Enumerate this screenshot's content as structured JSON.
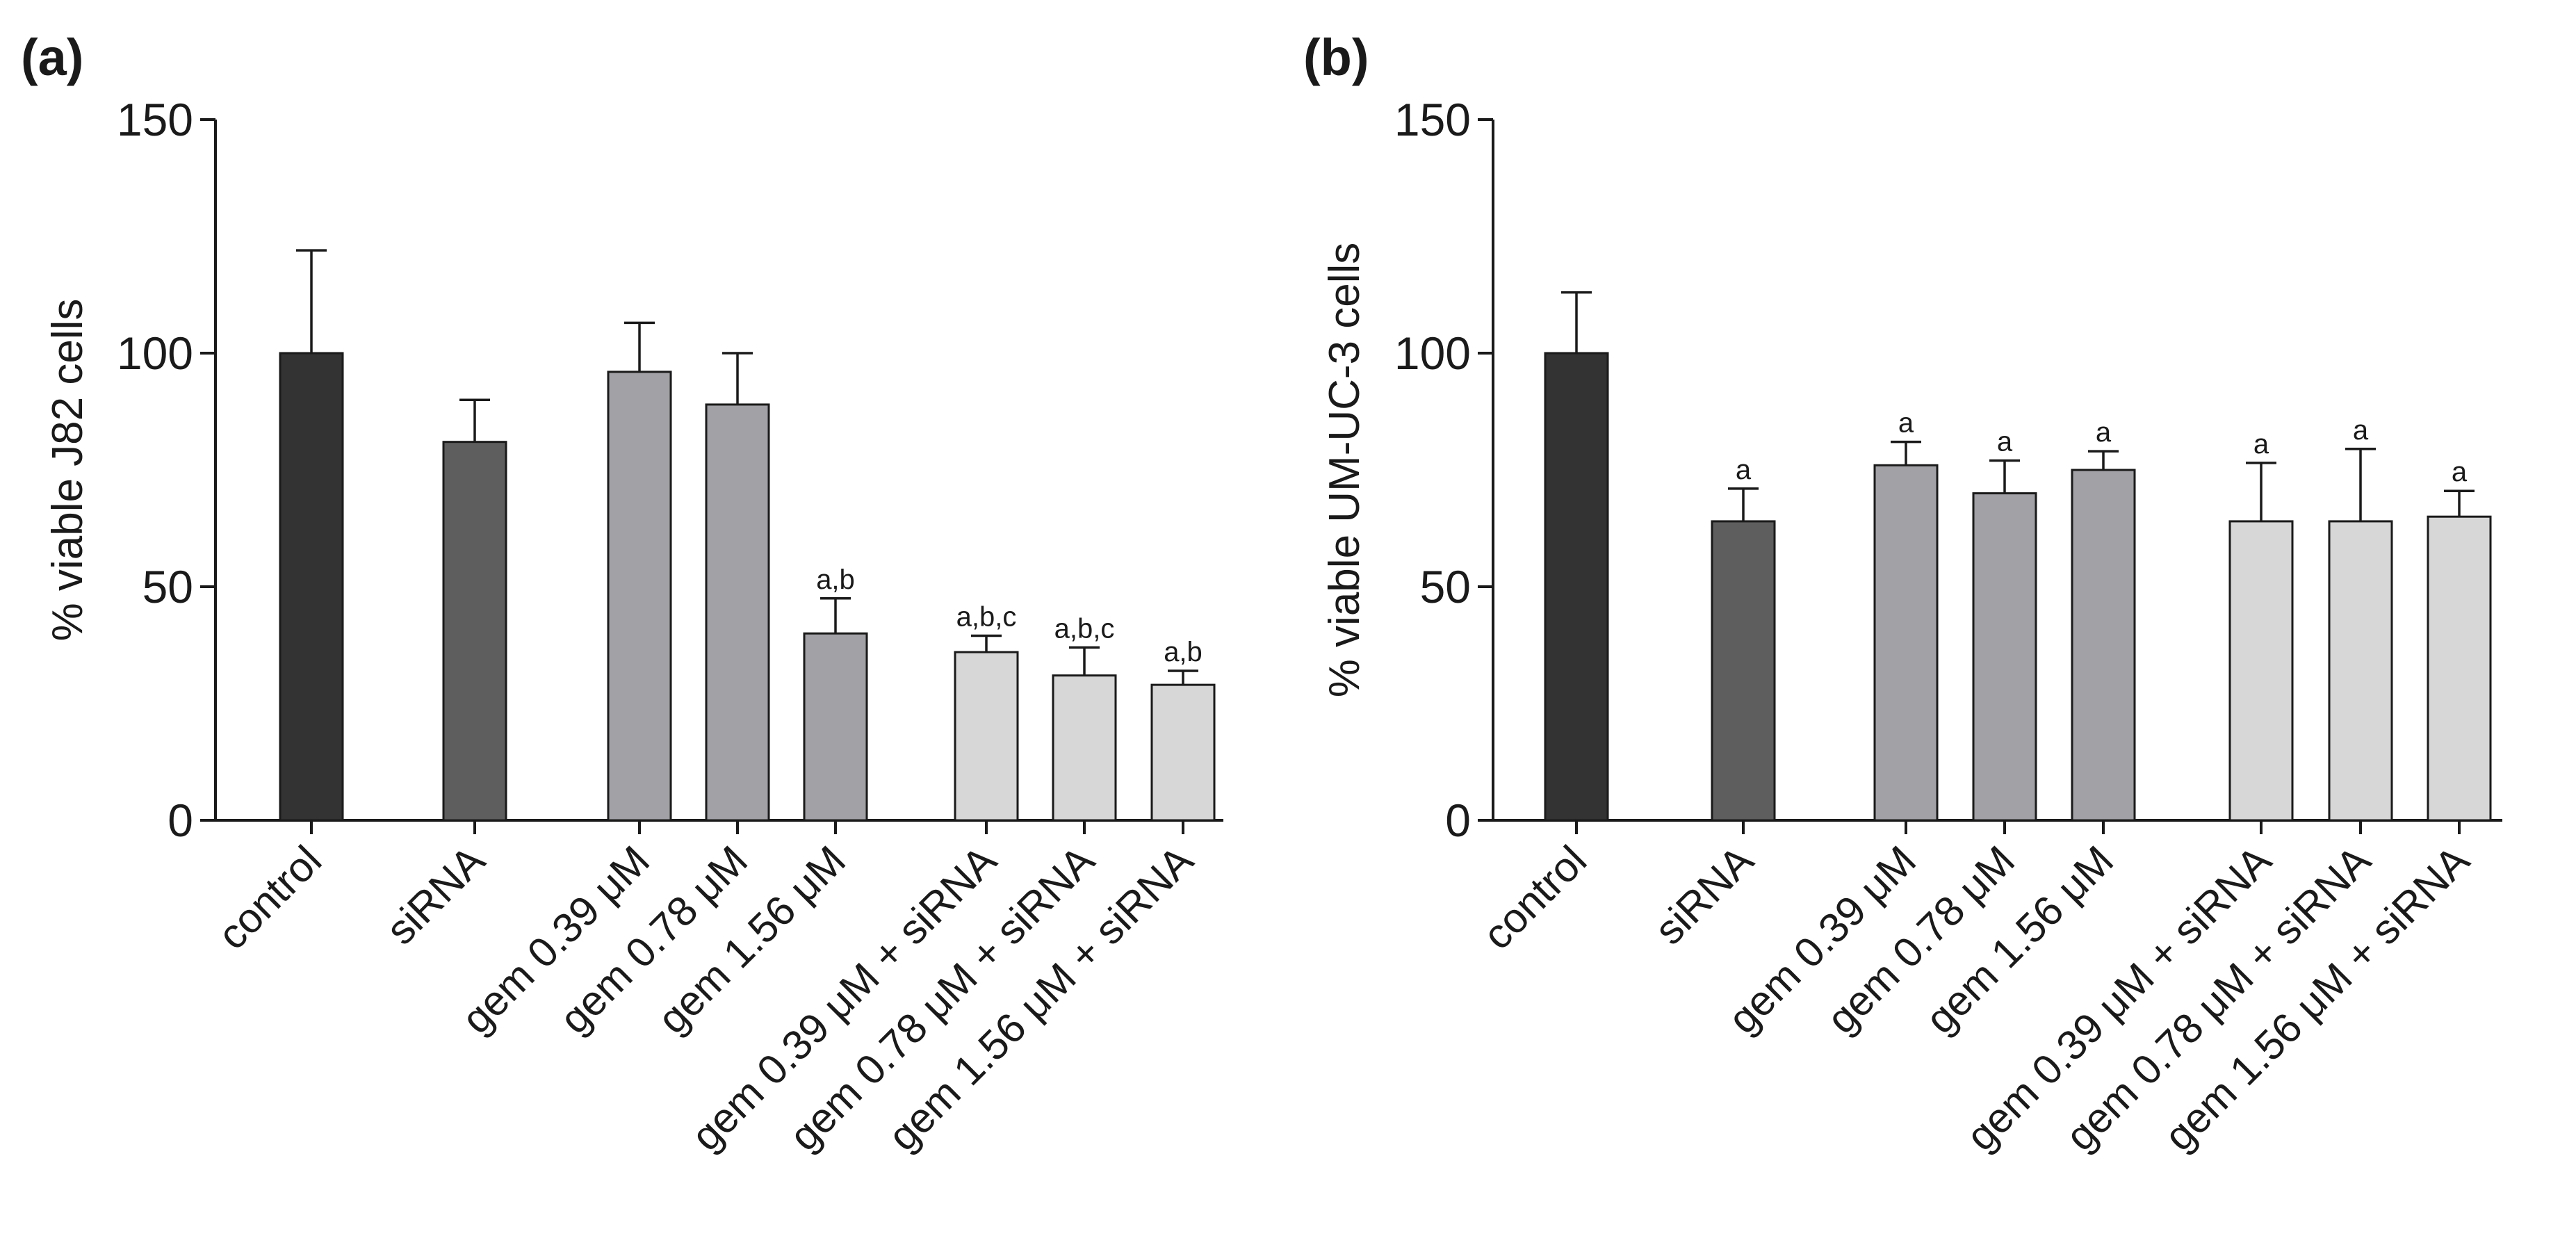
{
  "chart_data": [
    {
      "type": "bar",
      "panel_label": "(a)",
      "ylabel": "% viable J82 cells",
      "xlabel": "",
      "ylim": [
        0,
        150
      ],
      "yticks": [
        0,
        50,
        100,
        150
      ],
      "groups": [
        [
          0
        ],
        [
          1
        ],
        [
          2,
          3,
          4
        ],
        [
          5,
          6,
          7
        ]
      ],
      "categories": [
        "control",
        "siRNA",
        "gem 0.39 μM",
        "gem 0.78 μM",
        "gem 1.56 μM",
        "gem 0.39 μM + siRNA",
        "gem 0.78 μM + siRNA",
        "gem 1.56 μM + siRNA"
      ],
      "values": [
        100,
        81,
        96,
        89,
        40,
        36,
        31,
        29
      ],
      "errors": [
        22,
        9,
        10.5,
        11,
        7.5,
        3.5,
        6,
        3
      ],
      "significance": [
        "",
        "",
        "",
        "",
        "a,b",
        "a,b,c",
        "a,b,c",
        "a,b"
      ],
      "colors": [
        "#333333",
        "#5e5e5e",
        "#a1a1a6",
        "#a1a1a6",
        "#a1a1a6",
        "#d7d7d7",
        "#d7d7d7",
        "#d7d7d7"
      ]
    },
    {
      "type": "bar",
      "panel_label": "(b)",
      "ylabel": "% viable UM-UC-3 cells",
      "xlabel": "",
      "ylim": [
        0,
        150
      ],
      "yticks": [
        0,
        50,
        100,
        150
      ],
      "groups": [
        [
          0
        ],
        [
          1
        ],
        [
          2,
          3,
          4
        ],
        [
          5,
          6,
          7
        ]
      ],
      "categories": [
        "control",
        "siRNA",
        "gem 0.39 μM",
        "gem 0.78 μM",
        "gem 1.56 μM",
        "gem 0.39 μM + siRNA",
        "gem 0.78 μM + siRNA",
        "gem 1.56 μM + siRNA"
      ],
      "values": [
        100,
        64,
        76,
        70,
        75,
        64,
        64,
        65
      ],
      "errors": [
        13,
        7,
        5,
        7,
        4,
        12.5,
        15.5,
        5.5
      ],
      "significance": [
        "",
        "a",
        "a",
        "a",
        "a",
        "a",
        "a",
        "a"
      ],
      "colors": [
        "#333333",
        "#5e5e5e",
        "#a1a1a6",
        "#a1a1a6",
        "#a1a1a6",
        "#d7d7d7",
        "#d7d7d7",
        "#d7d7d7"
      ]
    }
  ]
}
